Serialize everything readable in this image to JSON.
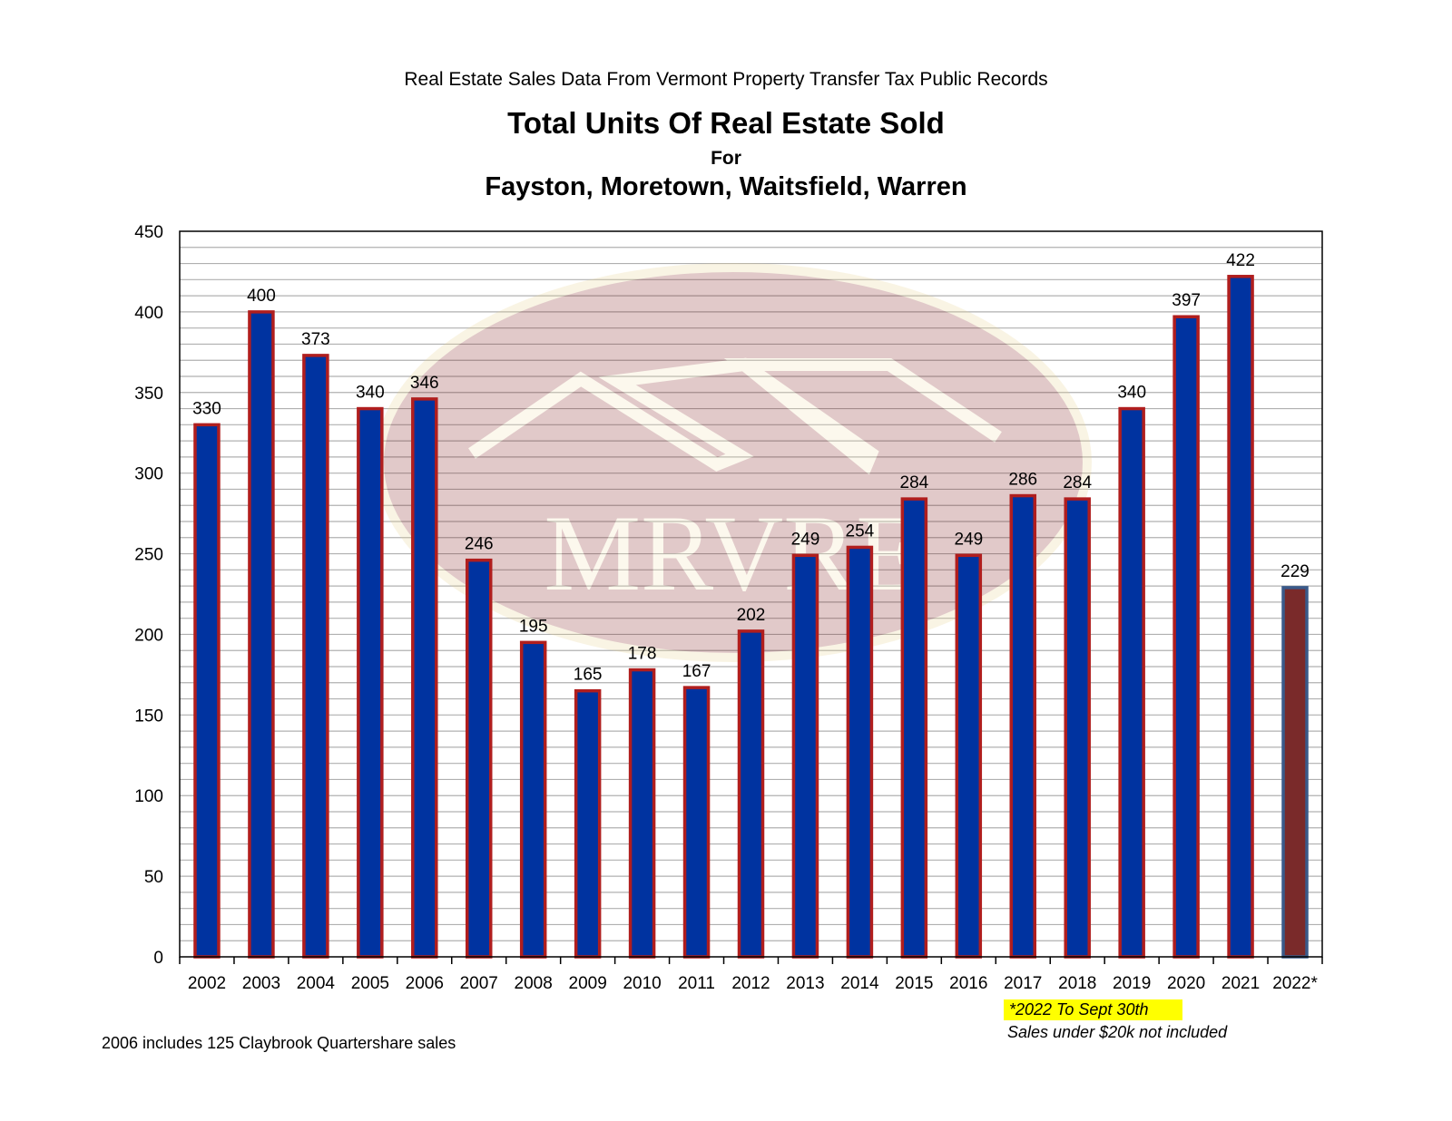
{
  "header": {
    "source_line": "Real Estate Sales Data From Vermont Property Transfer Tax Public Records",
    "title": "Total Units Of Real Estate Sold",
    "for_line": "For",
    "towns_line": "Fayston, Moretown, Waitsfield, Warren"
  },
  "watermark": {
    "text": "MRVRE"
  },
  "notes": {
    "partial_year": "*2022 To Sept 30th",
    "exclusion": "Sales under $20k not included",
    "claybrook": "2006 includes 125 Claybrook Quartershare sales"
  },
  "colors": {
    "bar_fill": "#0033a0",
    "bar_outline": "#b01e1e",
    "highlight_bar_fill": "#7a2a2a",
    "highlight_bar_outline": "#3a5a8a",
    "grid": "#b0b0b0",
    "note_highlight": "#ffff00"
  },
  "chart_data": {
    "type": "bar",
    "title": "Total Units Of Real Estate Sold",
    "categories": [
      "2002",
      "2003",
      "2004",
      "2005",
      "2006",
      "2007",
      "2008",
      "2009",
      "2010",
      "2011",
      "2012",
      "2013",
      "2014",
      "2015",
      "2016",
      "2017",
      "2018",
      "2019",
      "2020",
      "2021",
      "2022*"
    ],
    "values": [
      330,
      400,
      373,
      340,
      346,
      246,
      195,
      165,
      178,
      167,
      202,
      249,
      254,
      284,
      249,
      286,
      284,
      340,
      397,
      422,
      229
    ],
    "ylim": [
      0,
      450
    ],
    "yticks": [
      0,
      50,
      100,
      150,
      200,
      250,
      300,
      350,
      400,
      450
    ],
    "minor_gridline_step": 10,
    "grid": true,
    "legend": "none",
    "highlighted_category": "2022*",
    "data_labels": true
  }
}
